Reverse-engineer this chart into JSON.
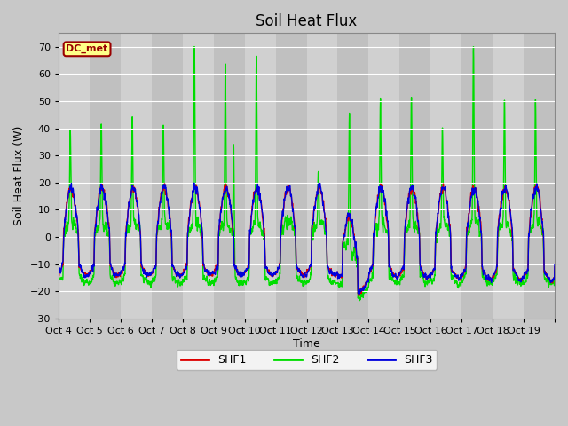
{
  "title": "Soil Heat Flux",
  "ylabel": "Soil Heat Flux (W)",
  "xlabel": "Time",
  "ylim": [
    -30,
    75
  ],
  "yticks": [
    -30,
    -20,
    -10,
    0,
    10,
    20,
    30,
    40,
    50,
    60,
    70
  ],
  "line_colors": {
    "SHF1": "#dd0000",
    "SHF2": "#00dd00",
    "SHF3": "#0000dd"
  },
  "line_widths": {
    "SHF1": 1.0,
    "SHF2": 1.0,
    "SHF3": 1.0
  },
  "fig_bg_color": "#c8c8c8",
  "plot_bg_color": "#c8c8c8",
  "alt_band_color": "#b8b8b8",
  "grid_color": "#ffffff",
  "dc_met_label": "DC_met",
  "dc_met_bg": "#ffff88",
  "dc_met_border": "#990000",
  "xtick_labels": [
    "Oct 4",
    "Oct 5",
    "Oct 6",
    "Oct 7",
    "Oct 8",
    "Oct 9",
    "Oct 10",
    "Oct 11",
    "Oct 12",
    "Oct 13",
    "Oct 14",
    "Oct 15",
    "Oct 16",
    "Oct 17",
    "Oct 18",
    "Oct 19",
    ""
  ],
  "n_days": 16,
  "points_per_day": 144,
  "title_fontsize": 12,
  "axis_label_fontsize": 9,
  "tick_fontsize": 8
}
